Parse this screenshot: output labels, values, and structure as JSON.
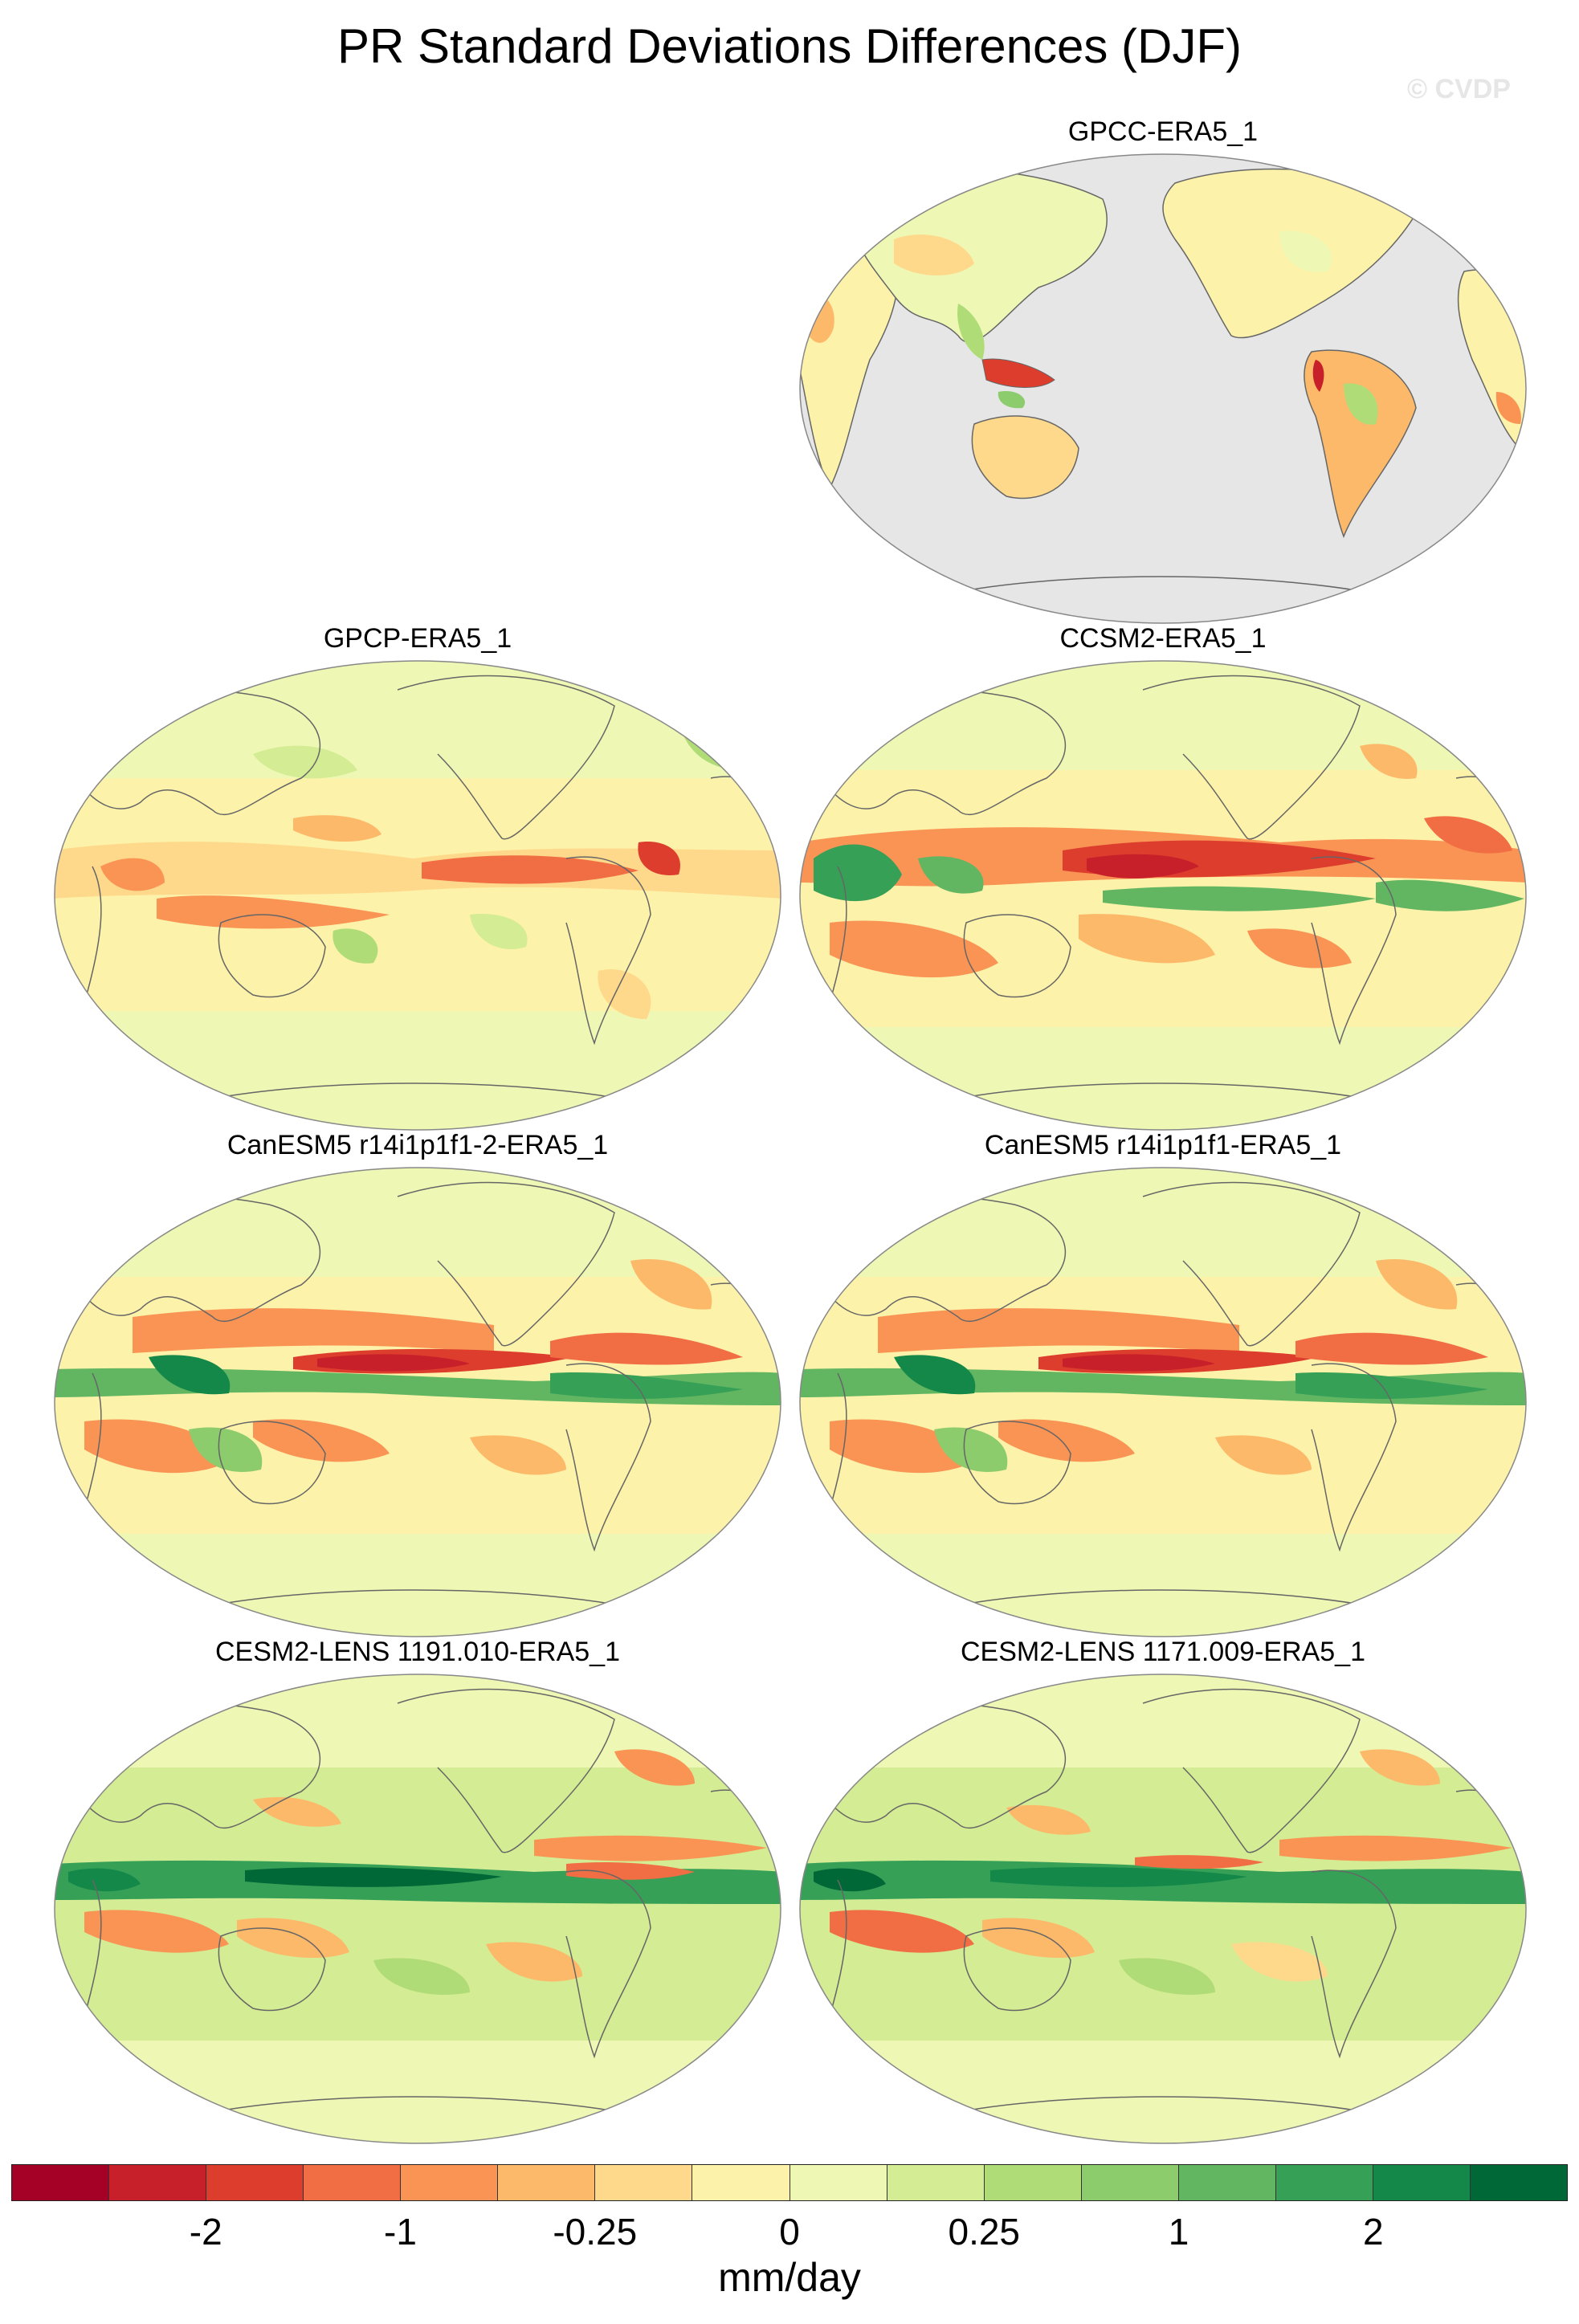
{
  "page": {
    "title": "PR Standard Deviations Differences (DJF)",
    "watermark": "© CVDP"
  },
  "colors": {
    "ocean_fill": "#e6e6e6",
    "coast": "#666666",
    "scale": [
      "#a50026",
      "#c8202a",
      "#dd3d2d",
      "#f16d43",
      "#f99455",
      "#fdb96a",
      "#fed98b",
      "#fdf2a9",
      "#eef8b4",
      "#d4ec93",
      "#b0dc78",
      "#8ccc6d",
      "#62b662",
      "#36a057",
      "#138848",
      "#006837"
    ]
  },
  "chart_data": {
    "type": "heatmap",
    "projection": "Robinson (Pacific-centered)",
    "colorbar": {
      "labels": [
        "-2",
        "-1",
        "-0.25",
        "0",
        "0.25",
        "1",
        "2"
      ],
      "units": "mm/day",
      "placement": "bottom"
    },
    "panels": [
      {
        "title": "GPCC-ERA5_1",
        "land_only": true
      },
      {
        "title": "GPCP-ERA5_1",
        "land_only": false
      },
      {
        "title": "CCSM2-ERA5_1",
        "land_only": false
      },
      {
        "title": "CanESM5 r14i1p1f1-2-ERA5_1",
        "land_only": false
      },
      {
        "title": "CanESM5 r14i1p1f1-ERA5_1",
        "land_only": false
      },
      {
        "title": "CESM2-LENS 1191.010-ERA5_1",
        "land_only": false
      },
      {
        "title": "CESM2-LENS 1171.009-ERA5_1",
        "land_only": false
      }
    ]
  }
}
